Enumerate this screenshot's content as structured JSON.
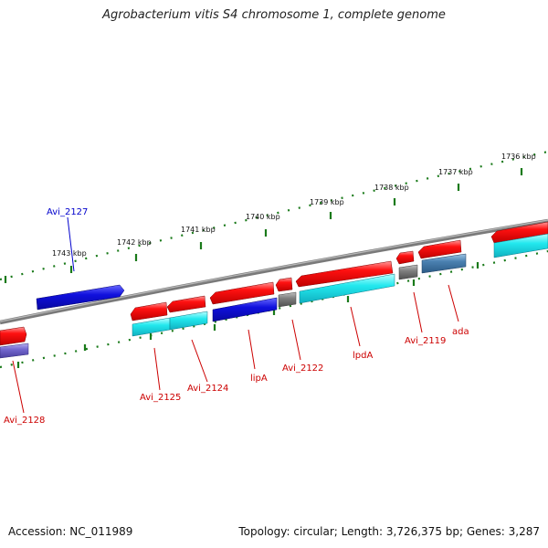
{
  "title": "Agrobacterium vitis S4 chromosome 1, complete genome",
  "footer": {
    "accession": "Accession: NC_011989",
    "summary": "Topology: circular; Length: 3,726,375 bp; Genes: 3,287"
  },
  "ruler_labels": [
    "1736 kbp",
    "1737 kbp",
    "1738 kbp",
    "1739 kbp",
    "1740 kbp",
    "1741 kbp",
    "1742 kbp",
    "1743 kbp"
  ],
  "gene_labels": [
    "Avi_2127",
    "Avi_2128",
    "Avi_2125",
    "Avi_2124",
    "lipA",
    "Avi_2122",
    "lpdA",
    "Avi_2119",
    "ada"
  ],
  "colors": {
    "backbone": "#8a8a8a",
    "forward_cds": "#ff1111",
    "cyan_feature": "#22e8ee",
    "blue_feature": "#1010dd",
    "steel_feature": "#4a80b0",
    "gray_feature": "#808080",
    "violet_feature": "#7468d0",
    "ruler": "#1a7a1a",
    "label_red": "#cc0000",
    "label_blue": "#0000cc"
  }
}
